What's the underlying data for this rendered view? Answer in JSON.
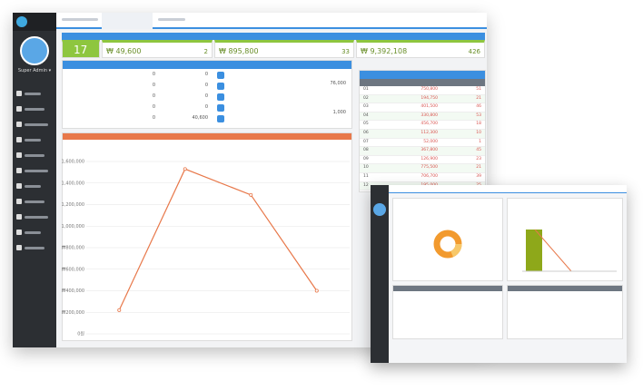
{
  "user": "Super Admin ▾",
  "cards": [
    {
      "value": "17"
    },
    {
      "value": "₩ 49,600",
      "count": "2"
    },
    {
      "value": "₩ 895,800",
      "count": "33"
    },
    {
      "value": "₩ 9,392,108",
      "count": "426"
    }
  ],
  "summary": {
    "left": [
      "0",
      "0",
      "0",
      "0",
      "0"
    ],
    "mid": [
      "0",
      "0",
      "0",
      "0",
      "40,600"
    ],
    "right": [
      "76,000",
      "1,000"
    ]
  },
  "table": {
    "rows": [
      [
        "01",
        "750,800",
        "51"
      ],
      [
        "02",
        "194,750",
        "21"
      ],
      [
        "03",
        "401,500",
        "46"
      ],
      [
        "04",
        "330,800",
        "53"
      ],
      [
        "05",
        "456,700",
        "18"
      ],
      [
        "06",
        "112,300",
        "10"
      ],
      [
        "07",
        "52,000",
        "1"
      ],
      [
        "08",
        "367,800",
        "45"
      ],
      [
        "09",
        "126,900",
        "23"
      ],
      [
        "10",
        "775,500",
        "21"
      ],
      [
        "11",
        "706,700",
        "39"
      ],
      [
        "12",
        "195,000",
        "25"
      ]
    ]
  },
  "sales_chart": {
    "type": "line",
    "color": "#e8784a",
    "values": [
      220000,
      1530000,
      1290000,
      400000
    ],
    "ylim": [
      0,
      1600000
    ],
    "yticks": [
      {
        "value": 0,
        "label": "0원"
      },
      {
        "value": 200000,
        "label": "₩200,000"
      },
      {
        "value": 400000,
        "label": "₩400,000"
      },
      {
        "value": 600000,
        "label": "₩600,000"
      },
      {
        "value": 800000,
        "label": "₩800,000"
      },
      {
        "value": 1000000,
        "label": "₩1,000,000"
      },
      {
        "value": 1200000,
        "label": "₩1,200,000"
      },
      {
        "value": 1400000,
        "label": "₩1,400,000"
      },
      {
        "value": 1600000,
        "label": "₩1,600,000"
      }
    ]
  }
}
